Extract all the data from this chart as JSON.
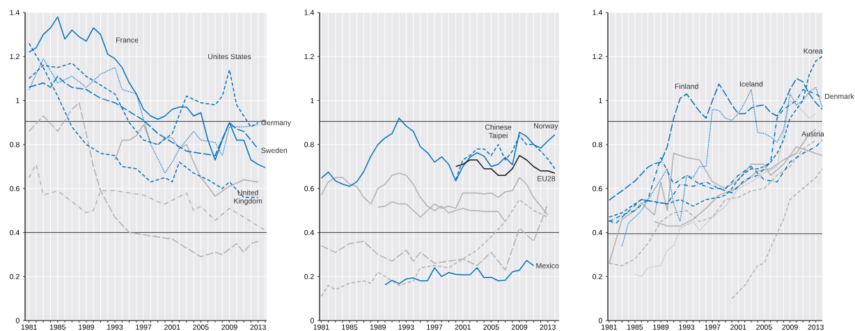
{
  "chart_data": [
    {
      "type": "line",
      "xlim": [
        1980.45,
        2014.2
      ],
      "ylim": [
        0,
        1.4
      ],
      "yticks": [
        0,
        0.2,
        0.4,
        0.6,
        0.8,
        1,
        1.2,
        1.4
      ],
      "grid": true,
      "xticks": [
        1981,
        {
          "value": 1982,
          "label": null
        },
        {
          "value": 1983,
          "label": null
        },
        {
          "value": 1984,
          "label": null
        },
        1985,
        {
          "value": 1986,
          "label": null
        },
        {
          "value": 1987,
          "label": null
        },
        {
          "value": 1988,
          "label": null
        },
        1989,
        {
          "value": 1990,
          "label": null
        },
        {
          "value": 1991,
          "label": null
        },
        {
          "value": 1992,
          "label": null
        },
        1993,
        {
          "value": 1994,
          "label": null
        },
        {
          "value": 1995,
          "label": null
        },
        {
          "value": 1996,
          "label": null
        },
        1997,
        {
          "value": 1998,
          "label": null
        },
        {
          "value": 1999,
          "label": null
        },
        {
          "value": 2000,
          "label": null
        },
        2001,
        {
          "value": 2002,
          "label": null
        },
        {
          "value": 2003,
          "label": null
        },
        {
          "value": 2004,
          "label": null
        },
        2005,
        {
          "value": 2006,
          "label": null
        },
        {
          "value": 2007,
          "label": null
        },
        {
          "value": 2008,
          "label": null
        },
        2009,
        {
          "value": 2010,
          "label": null
        },
        {
          "value": 2011,
          "label": null
        },
        {
          "value": 2012,
          "label": null
        },
        2013,
        {
          "value": 2014,
          "label": null
        }
      ],
      "ref_lines": [
        {
          "axis": "y",
          "value": 0.905,
          "color": "#222222"
        },
        {
          "axis": "y",
          "value": 0.4,
          "color": "#222222"
        }
      ],
      "series": [
        {
          "color": "#b0b0b0",
          "line_style": "dashdot",
          "x": [
            1981,
            1982,
            1983,
            1985,
            1987,
            1989,
            1990,
            1991,
            1993,
            1995,
            1997,
            1999,
            2000,
            2003,
            2004,
            2005,
            2007,
            2009,
            2011,
            2013,
            2014
          ],
          "values": [
            0.65,
            0.71,
            0.57,
            0.59,
            0.54,
            0.49,
            0.5,
            0.59,
            0.59,
            0.58,
            0.57,
            0.54,
            0.53,
            0.58,
            0.5,
            0.52,
            0.455,
            0.51,
            0.47,
            0.43,
            0.41
          ]
        },
        {
          "color": "#b0b0b0",
          "line_style": "longdash",
          "x": [
            1981,
            1983,
            1985,
            1987,
            1988,
            1989,
            1990,
            1991,
            1993,
            1995,
            1997,
            1999,
            2001,
            2003,
            2005,
            2007,
            2008,
            2010,
            2011,
            2012,
            2013
          ],
          "values": [
            0.86,
            0.93,
            0.86,
            0.96,
            0.99,
            0.85,
            0.7,
            0.59,
            0.47,
            0.4,
            0.39,
            0.38,
            0.37,
            0.33,
            0.29,
            0.31,
            0.3,
            0.35,
            0.31,
            0.35,
            0.36
          ]
        },
        {
          "color": "#b0b0b0",
          "line_style": "solid",
          "x": [
            1993,
            1994,
            1995,
            1996,
            1997,
            1998,
            1999,
            2000,
            2001,
            2002,
            2003,
            2004,
            2005,
            2006,
            2007,
            2009,
            2011,
            2013
          ],
          "values": [
            0.73,
            0.82,
            0.82,
            0.84,
            0.89,
            0.81,
            0.8,
            0.83,
            0.83,
            0.78,
            0.8,
            0.72,
            0.65,
            0.61,
            0.565,
            0.61,
            0.64,
            0.63
          ]
        },
        {
          "name": "France",
          "color": "#0072bc",
          "line_style": "solid",
          "x": [
            1981,
            1982,
            1983,
            1984,
            1985,
            1986,
            1987,
            1988,
            1989,
            1990,
            1991,
            1992,
            1993,
            1994,
            1995,
            1996,
            1997,
            1998,
            1999,
            2000,
            2001,
            2002,
            2003,
            2004,
            2005,
            2006,
            2007,
            2008,
            2009,
            2010,
            2011,
            2012,
            2013,
            2014
          ],
          "values": [
            1.22,
            1.24,
            1.3,
            1.33,
            1.38,
            1.28,
            1.32,
            1.29,
            1.27,
            1.33,
            1.3,
            1.21,
            1.19,
            1.15,
            1.08,
            1.03,
            0.96,
            0.93,
            0.915,
            0.93,
            0.96,
            0.97,
            0.97,
            0.93,
            0.945,
            0.82,
            0.73,
            0.82,
            0.9,
            0.82,
            0.82,
            0.73,
            0.71,
            0.695
          ]
        },
        {
          "name": "Unites States",
          "color": "#0072bc",
          "line_style": "dashed",
          "x": [
            1981,
            1983,
            1985,
            1987,
            1989,
            1991,
            1993,
            1995,
            1997,
            1999,
            2001,
            2003,
            2005,
            2007,
            2008,
            2009,
            2010,
            2012,
            2013
          ],
          "values": [
            1.1,
            1.16,
            1.15,
            1.17,
            1.11,
            1.07,
            1.03,
            0.9,
            0.82,
            0.8,
            0.85,
            1.02,
            0.99,
            0.98,
            1.02,
            1.14,
            0.98,
            0.88,
            0.9
          ]
        },
        {
          "name": "Germany",
          "color": "#0072bc",
          "line_style": "dotted",
          "x": [
            1981,
            1983,
            1985,
            1987,
            1989,
            1991,
            1993,
            1994,
            1996,
            1998,
            2000,
            2001,
            2002,
            2004,
            2005,
            2007,
            2008,
            2009,
            2011,
            2013
          ],
          "values": [
            1.05,
            1.19,
            1.08,
            1.11,
            1.06,
            1.12,
            1.15,
            1.05,
            1.03,
            0.8,
            0.67,
            0.72,
            0.78,
            0.86,
            0.82,
            0.81,
            0.75,
            0.88,
            0.88,
            0.89
          ]
        },
        {
          "name": "Sweden",
          "color": "#0072bc",
          "line_style": "longdash",
          "x": [
            1981,
            1983,
            1984,
            1985,
            1986,
            1987,
            1989,
            1991,
            1993,
            1995,
            1997,
            1999,
            2001,
            2003,
            2005,
            2007,
            2009,
            2010,
            2011,
            2012,
            2013
          ],
          "values": [
            1.06,
            1.08,
            1.06,
            1.11,
            1.08,
            1.06,
            1.05,
            1.01,
            0.99,
            0.95,
            0.91,
            0.85,
            0.81,
            0.77,
            0.76,
            0.75,
            0.9,
            0.87,
            0.86,
            0.82,
            0.78
          ]
        },
        {
          "name": "United Kingdom",
          "color": "#0072bc",
          "line_style": "dashed",
          "x": [
            1981,
            1983,
            1985,
            1987,
            1989,
            1991,
            1993,
            1994,
            1996,
            1998,
            2000,
            2001,
            2002,
            2004,
            2006,
            2008,
            2009,
            2011,
            2013
          ],
          "values": [
            1.26,
            1.15,
            1.02,
            0.88,
            0.8,
            0.76,
            0.75,
            0.7,
            0.69,
            0.63,
            0.65,
            0.63,
            0.72,
            0.67,
            0.64,
            0.6,
            0.63,
            0.56,
            0.56
          ]
        }
      ]
    },
    {
      "type": "line",
      "xlim": [
        1980.76,
        2014.6
      ],
      "ylim": [
        0,
        1.4
      ],
      "yticks": [
        0,
        0.2,
        0.4,
        0.6,
        0.8,
        1,
        1.2,
        1.4
      ],
      "grid": true,
      "xticks": [
        1981,
        {
          "value": 1982,
          "label": null
        },
        {
          "value": 1983,
          "label": null
        },
        {
          "value": 1984,
          "label": null
        },
        1985,
        {
          "value": 1986,
          "label": null
        },
        {
          "value": 1987,
          "label": null
        },
        {
          "value": 1988,
          "label": null
        },
        1989,
        {
          "value": 1990,
          "label": null
        },
        {
          "value": 1991,
          "label": null
        },
        {
          "value": 1992,
          "label": null
        },
        1993,
        {
          "value": 1994,
          "label": null
        },
        {
          "value": 1995,
          "label": null
        },
        {
          "value": 1996,
          "label": null
        },
        1997,
        {
          "value": 1998,
          "label": null
        },
        {
          "value": 1999,
          "label": null
        },
        {
          "value": 2000,
          "label": null
        },
        2001,
        {
          "value": 2002,
          "label": null
        },
        {
          "value": 2003,
          "label": null
        },
        {
          "value": 2004,
          "label": null
        },
        2005,
        {
          "value": 2006,
          "label": null
        },
        {
          "value": 2007,
          "label": null
        },
        {
          "value": 2008,
          "label": null
        },
        2009,
        {
          "value": 2010,
          "label": null
        },
        {
          "value": 2011,
          "label": null
        },
        {
          "value": 2012,
          "label": null
        },
        2013,
        {
          "value": 2014,
          "label": null
        }
      ],
      "ref_lines": [
        {
          "axis": "y",
          "value": 0.905,
          "color": "#222222"
        },
        {
          "axis": "y",
          "value": 0.4,
          "color": "#222222"
        }
      ],
      "series": [
        {
          "color": "#b0b0b0",
          "line_style": "solid",
          "x": [
            1981,
            1982,
            1983,
            1984,
            1985,
            1986,
            1987,
            1988,
            1989,
            1990,
            1991,
            1992,
            1993,
            1994,
            1995,
            1996,
            1997,
            1998,
            1999,
            2000,
            2001,
            2002,
            2003,
            2004,
            2005,
            2006,
            2007
          ],
          "values": [
            0.57,
            0.63,
            0.65,
            0.65,
            0.62,
            0.61,
            0.56,
            0.53,
            0.6,
            0.62,
            0.66,
            0.67,
            0.66,
            0.62,
            0.56,
            0.52,
            0.5,
            0.52,
            0.49,
            0.5,
            0.51,
            0.5,
            0.5,
            0.495,
            0.495,
            0.495,
            0.45
          ]
        },
        {
          "color": "#b0b0b0",
          "line_style": "solid",
          "x": [
            1989,
            1990,
            1991,
            1992,
            1993,
            1994,
            1995,
            1996,
            1997,
            1998,
            1999,
            2000,
            2001,
            2002,
            2003,
            2004,
            2005,
            2006,
            2007,
            2008,
            2009,
            2010,
            2011,
            2012,
            2013
          ],
          "values": [
            0.515,
            0.52,
            0.54,
            0.53,
            0.53,
            0.5,
            0.47,
            0.5,
            0.53,
            0.51,
            0.52,
            0.51,
            0.58,
            0.58,
            0.58,
            0.575,
            0.58,
            0.56,
            0.585,
            0.59,
            0.65,
            0.62,
            0.56,
            0.52,
            0.48
          ]
        },
        {
          "color": "#b0b0b0",
          "line_style": "dashed",
          "x": [
            1981,
            1982,
            1983,
            1985,
            1987,
            1988,
            1989,
            1990,
            1991,
            1992,
            1994,
            1995,
            1997,
            1999,
            2001,
            2003,
            2005,
            2007,
            2009,
            2011,
            2013
          ],
          "values": [
            0.11,
            0.16,
            0.14,
            0.17,
            0.18,
            0.17,
            0.22,
            0.2,
            0.18,
            0.16,
            0.18,
            0.24,
            0.25,
            0.24,
            0.28,
            0.32,
            0.38,
            0.45,
            0.55,
            0.5,
            0.47
          ]
        },
        {
          "color": "#b0b0b0",
          "line_style": "longdash",
          "x": [
            1981,
            1983,
            1985,
            1987,
            1989,
            1991,
            1993,
            1994,
            1995,
            1997,
            1999,
            2001,
            2003,
            2005,
            2007,
            2009,
            2011,
            2013
          ],
          "values": [
            0.34,
            0.31,
            0.35,
            0.36,
            0.3,
            0.27,
            0.32,
            0.27,
            0.31,
            0.26,
            0.27,
            0.28,
            0.25,
            0.31,
            0.23,
            0.42,
            0.36,
            0.53
          ]
        },
        {
          "name": "Norway",
          "color": "#0072bc",
          "line_style": "solid",
          "x": [
            1981,
            1982,
            1983,
            1984,
            1985,
            1986,
            1987,
            1988,
            1989,
            1990,
            1991,
            1992,
            1993,
            1994,
            1995,
            1996,
            1997,
            1998,
            1999,
            2000,
            2001,
            2002,
            2003,
            2004,
            2005,
            2006,
            2007,
            2008,
            2009,
            2010,
            2011,
            2012,
            2013,
            2014
          ],
          "values": [
            0.647,
            0.675,
            0.635,
            0.62,
            0.61,
            0.63,
            0.677,
            0.747,
            0.8,
            0.83,
            0.85,
            0.92,
            0.884,
            0.86,
            0.79,
            0.763,
            0.72,
            0.744,
            0.71,
            0.635,
            0.7,
            0.742,
            0.763,
            0.747,
            0.7,
            0.71,
            0.742,
            0.708,
            0.856,
            0.837,
            0.8,
            0.784,
            0.816,
            0.844
          ]
        },
        {
          "name": "Chinese Taipei",
          "color": "#0072bc",
          "line_style": "dashed",
          "x": [
            2000,
            2001,
            2002,
            2003,
            2004,
            2005,
            2006,
            2007,
            2008,
            2009,
            2010,
            2011,
            2012,
            2013,
            2014
          ],
          "values": [
            0.64,
            0.73,
            0.75,
            0.78,
            0.78,
            0.75,
            0.8,
            0.73,
            0.77,
            0.84,
            0.8,
            0.8,
            0.77,
            0.735,
            0.69
          ]
        },
        {
          "name": "EU28",
          "color": "#1a1a1a",
          "line_style": "solid",
          "x": [
            2000,
            2001,
            2002,
            2003,
            2004,
            2005,
            2006,
            2007,
            2008,
            2009,
            2010,
            2011,
            2012,
            2013,
            2014
          ],
          "values": [
            0.7,
            0.71,
            0.73,
            0.73,
            0.69,
            0.69,
            0.66,
            0.66,
            0.69,
            0.75,
            0.73,
            0.7,
            0.68,
            0.68,
            0.67
          ]
        },
        {
          "name": "Mexico",
          "color": "#0072bc",
          "line_style": "solid",
          "x": [
            1990,
            1991,
            1992,
            1993,
            1994,
            1995,
            1996,
            1997,
            1998,
            1999,
            2000,
            2001,
            2002,
            2003,
            2004,
            2005,
            2006,
            2007,
            2008,
            2009,
            2010,
            2011
          ],
          "values": [
            0.162,
            0.183,
            0.168,
            0.189,
            0.194,
            0.181,
            0.181,
            0.24,
            0.2,
            0.218,
            0.21,
            0.208,
            0.208,
            0.24,
            0.195,
            0.197,
            0.181,
            0.183,
            0.221,
            0.229,
            0.273,
            0.25
          ]
        }
      ]
    },
    {
      "type": "line",
      "xlim": [
        1980.8,
        2014.0
      ],
      "ylim": [
        0,
        1.4
      ],
      "yticks": [
        0,
        0.2,
        0.4,
        0.6,
        0.8,
        1,
        1.2,
        1.4
      ],
      "grid": true,
      "xticks": [
        1981,
        {
          "value": 1982,
          "label": null
        },
        {
          "value": 1983,
          "label": null
        },
        {
          "value": 1984,
          "label": null
        },
        1985,
        {
          "value": 1986,
          "label": null
        },
        {
          "value": 1987,
          "label": null
        },
        {
          "value": 1988,
          "label": null
        },
        1989,
        {
          "value": 1990,
          "label": null
        },
        {
          "value": 1991,
          "label": null
        },
        {
          "value": 1992,
          "label": null
        },
        1993,
        {
          "value": 1994,
          "label": null
        },
        {
          "value": 1995,
          "label": null
        },
        {
          "value": 1996,
          "label": null
        },
        1997,
        {
          "value": 1998,
          "label": null
        },
        {
          "value": 1999,
          "label": null
        },
        {
          "value": 2000,
          "label": null
        },
        2001,
        {
          "value": 2002,
          "label": null
        },
        {
          "value": 2003,
          "label": null
        },
        {
          "value": 2004,
          "label": null
        },
        2005,
        {
          "value": 2006,
          "label": null
        },
        {
          "value": 2007,
          "label": null
        },
        {
          "value": 2008,
          "label": null
        },
        2009,
        {
          "value": 2010,
          "label": null
        },
        {
          "value": 2011,
          "label": null
        },
        {
          "value": 2012,
          "label": null
        },
        2013
      ],
      "ref_lines": [
        {
          "axis": "y",
          "value": 0.905,
          "color": "#222222"
        },
        {
          "axis": "y",
          "value": 0.395,
          "color": "#222222"
        }
      ],
      "series": [
        {
          "color": "#b0b0b0",
          "line_style": "solid",
          "x": [
            1981,
            1983,
            1985,
            1986,
            1988,
            1989,
            1990,
            1991,
            1993,
            1995,
            1997,
            1999,
            2001,
            2003,
            2005,
            2006,
            2008,
            2010,
            2012,
            2014
          ],
          "values": [
            0.26,
            0.46,
            0.5,
            0.535,
            0.48,
            0.63,
            0.5,
            0.76,
            0.74,
            0.73,
            0.63,
            0.6,
            0.64,
            0.71,
            0.71,
            0.66,
            0.71,
            0.79,
            0.77,
            0.75
          ]
        },
        {
          "color": "#b0b0b0",
          "line_style": "solid",
          "x": [
            1988,
            1990,
            1992,
            1994,
            1996,
            1998,
            2000,
            2002,
            2004,
            2006,
            2008,
            2010,
            2012,
            2013
          ],
          "values": [
            0.45,
            0.43,
            0.43,
            0.46,
            0.51,
            0.57,
            0.59,
            0.63,
            0.68,
            0.69,
            0.73,
            0.76,
            0.85,
            0.87
          ]
        },
        {
          "color": "#b0b0b0",
          "line_style": "dashed",
          "x": [
            2000,
            2002,
            2004,
            2005,
            2006,
            2008,
            2009,
            2011,
            2013,
            2014
          ],
          "values": [
            0.1,
            0.16,
            0.25,
            0.26,
            0.33,
            0.46,
            0.55,
            0.6,
            0.65,
            0.69
          ]
        },
        {
          "color": "#b0b0b0",
          "line_style": "dotted",
          "x": [
            1985,
            1986,
            1987,
            1989,
            1990,
            1991,
            1992,
            1994,
            1995,
            1997,
            1999,
            2001,
            2003,
            2005,
            2007,
            2009,
            2010,
            2012,
            2013
          ],
          "values": [
            0.21,
            0.2,
            0.24,
            0.25,
            0.32,
            0.34,
            0.42,
            0.45,
            0.41,
            0.47,
            0.52,
            0.6,
            0.63,
            0.67,
            0.7,
            1.0,
            0.98,
            0.92,
            0.94
          ]
        },
        {
          "color": "#b0b0b0",
          "line_style": "dashed",
          "x": [
            1981,
            1983,
            1985,
            1987,
            1989,
            1991,
            1993,
            1995,
            1997,
            1999,
            2001,
            2003,
            2005,
            2007,
            2009,
            2011,
            2013
          ],
          "values": [
            0.26,
            0.25,
            0.28,
            0.35,
            0.45,
            0.49,
            0.5,
            0.45,
            0.47,
            0.55,
            0.56,
            0.59,
            0.6,
            0.66,
            0.7,
            0.78,
            0.82
          ]
        },
        {
          "name": "Finland",
          "color": "#0072bc",
          "line_style": "longdash",
          "x": [
            1981,
            1983,
            1985,
            1987,
            1988,
            1989,
            1990,
            1991,
            1992,
            1993,
            1994,
            1995,
            1996,
            1997,
            1998,
            1999,
            2000,
            2001,
            2002,
            2003,
            2004,
            2005,
            2006,
            2007,
            2008,
            2009,
            2010,
            2011,
            2012,
            2013,
            2014
          ],
          "values": [
            0.547,
            0.59,
            0.634,
            0.697,
            0.713,
            0.72,
            0.79,
            0.92,
            1.01,
            1.03,
            0.99,
            0.95,
            0.92,
            1.0,
            1.075,
            1.03,
            0.98,
            0.94,
            0.94,
            0.966,
            0.976,
            0.98,
            0.945,
            0.93,
            0.98,
            1.05,
            1.1,
            1.085,
            1.03,
            0.99,
            0.96
          ]
        },
        {
          "name": "Iceland",
          "color": "#0072bc",
          "line_style": "dotted",
          "x": [
            1983,
            1984,
            1985,
            1986,
            1990,
            1991,
            1992,
            1993,
            1994,
            1995,
            1996,
            1997,
            1998,
            1999,
            2000,
            2001,
            2002,
            2003,
            2004,
            2005,
            2006,
            2007,
            2008,
            2009,
            2010,
            2011,
            2012,
            2013,
            2014
          ],
          "values": [
            0.339,
            0.444,
            0.47,
            0.5,
            0.69,
            0.53,
            0.45,
            0.66,
            0.65,
            0.7,
            0.7,
            0.96,
            0.955,
            0.92,
            0.91,
            0.94,
            0.99,
            1.05,
            0.855,
            0.85,
            0.835,
            0.81,
            0.866,
            1.03,
            0.98,
            1.0,
            1.04,
            1.06,
            0.97
          ]
        },
        {
          "name": "Korea",
          "color": "#0072bc",
          "line_style": "dashed",
          "x": [
            1981,
            1983,
            1985,
            1986,
            1988,
            1990,
            1992,
            1994,
            1996,
            1998,
            1999,
            2000,
            2001,
            2002,
            2003,
            2004,
            2005,
            2006,
            2007,
            2008,
            2009,
            2010,
            2011,
            2012,
            2013,
            2014
          ],
          "values": [
            0.47,
            0.49,
            0.53,
            0.55,
            0.54,
            0.53,
            0.55,
            0.52,
            0.55,
            0.56,
            0.57,
            0.6,
            0.64,
            0.67,
            0.69,
            0.69,
            0.7,
            0.72,
            0.76,
            0.82,
            0.92,
            0.96,
            1.0,
            1.12,
            1.18,
            1.2
          ]
        },
        {
          "name": "Denmark",
          "color": "#0072bc",
          "line_style": "dashdot",
          "x": [
            1981,
            1982,
            1983,
            1986,
            1990,
            1992,
            1994,
            1996,
            1998,
            2000,
            2002,
            2004,
            2006,
            2007,
            2008,
            2009,
            2010,
            2011,
            2012,
            2013,
            2014
          ],
          "values": [
            0.455,
            0.44,
            0.47,
            0.55,
            0.53,
            0.62,
            0.61,
            0.63,
            0.6,
            0.58,
            0.64,
            0.66,
            0.72,
            0.92,
            0.96,
            0.98,
            1.0,
            1.05,
            1.04,
            1.03,
            1.01
          ]
        },
        {
          "name": "Austria",
          "color": "#0072bc",
          "line_style": "dashdot",
          "x": [
            1981,
            1983,
            1985,
            1987,
            1989,
            1991,
            1993,
            1995,
            1997,
            1999,
            2001,
            2003,
            2005,
            2007,
            2009,
            2011,
            2013,
            2014
          ],
          "values": [
            0.45,
            0.48,
            0.5,
            0.55,
            0.74,
            0.62,
            0.66,
            0.62,
            0.6,
            0.6,
            0.66,
            0.7,
            0.64,
            0.63,
            0.72,
            0.76,
            0.79,
            0.82
          ]
        }
      ]
    }
  ]
}
